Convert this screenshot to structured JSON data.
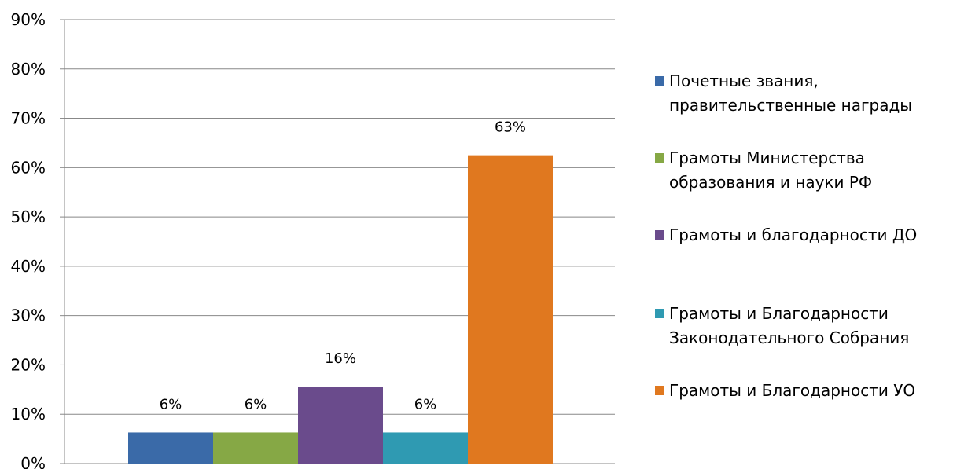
{
  "chart_data": {
    "type": "bar",
    "series": [
      {
        "name": "Почетные звания,\nправительственные награды",
        "value": 6.3,
        "label": "6%",
        "color": "#3a6aa8"
      },
      {
        "name": "Грамоты Министерства\nобразования и науки РФ",
        "value": 6.3,
        "label": "6%",
        "color": "#86a845"
      },
      {
        "name": "Грамоты и благодарности ДО",
        "value": 15.6,
        "label": "16%",
        "color": "#6a4b8c"
      },
      {
        "name": "Грамоты и Благодарности\nЗаконодательного Собрания",
        "value": 6.3,
        "label": "6%",
        "color": "#2f9ab2"
      },
      {
        "name": "Грамоты и Благодарности УО",
        "value": 62.5,
        "label": "63%",
        "color": "#e0781f"
      }
    ],
    "yticks": [
      "0%",
      "10%",
      "20%",
      "30%",
      "40%",
      "50%",
      "60%",
      "70%",
      "80%",
      "90%"
    ],
    "ylim": [
      0,
      90
    ],
    "grid": true,
    "legend_position": "right"
  }
}
